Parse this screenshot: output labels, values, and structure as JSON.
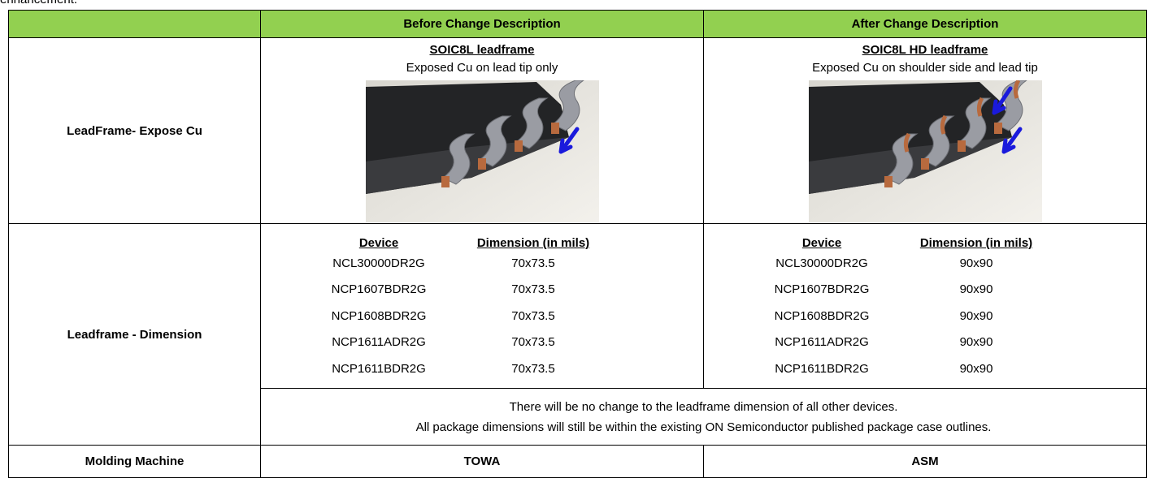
{
  "intro": "enhancement.",
  "table": {
    "columns": [
      "Before Change Description",
      "After Change Description"
    ],
    "rows": [
      {
        "label": "LeadFrame- Expose Cu",
        "before": {
          "title": "SOIC8L leadframe",
          "caption": "Exposed Cu on lead tip only"
        },
        "after": {
          "title": "SOIC8L HD leadframe",
          "caption": "Exposed Cu on shoulder side and lead tip"
        }
      },
      {
        "label": "Leadframe - Dimension",
        "subheaders": [
          "Device",
          "Dimension (in mils)"
        ],
        "before": [
          [
            "NCL30000DR2G",
            "70x73.5"
          ],
          [
            "NCP1607BDR2G",
            "70x73.5"
          ],
          [
            "NCP1608BDR2G",
            "70x73.5"
          ],
          [
            "NCP1611ADR2G",
            "70x73.5"
          ],
          [
            "NCP1611BDR2G",
            "70x73.5"
          ]
        ],
        "after": [
          [
            "NCL30000DR2G",
            "90x90"
          ],
          [
            "NCP1607BDR2G",
            "90x90"
          ],
          [
            "NCP1608BDR2G",
            "90x90"
          ],
          [
            "NCP1611ADR2G",
            "90x90"
          ],
          [
            "NCP1611BDR2G",
            "90x90"
          ]
        ],
        "notes": [
          "There will be no change to the leadframe dimension of all other devices.",
          "All package dimensions will still be within the existing ON Semiconductor published package case outlines."
        ]
      },
      {
        "label": "Molding Machine",
        "before": "TOWA",
        "after": "ASM"
      }
    ]
  }
}
